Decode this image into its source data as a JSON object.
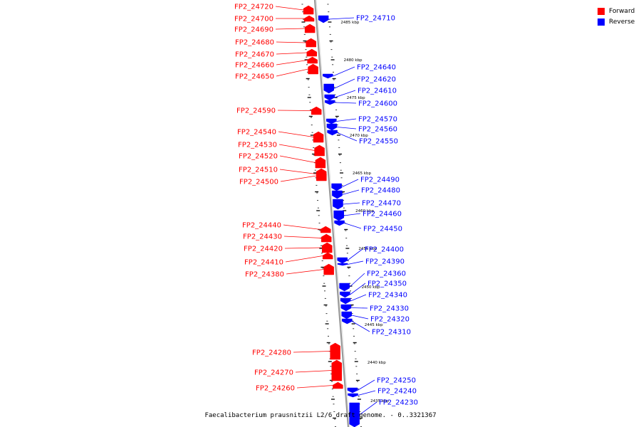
{
  "legend": [
    {
      "label": "Forward",
      "color": "#ff0000"
    },
    {
      "label": "Reverse",
      "color": "#0000ff"
    }
  ],
  "colors": {
    "forward": "#ff0000",
    "reverse": "#0000ff",
    "backbone": "#999999"
  },
  "caption": "Faecalibacterium prausnitzii L2/6 draft genome. - 0..3321367",
  "scale_ticks": [
    "2485 kbp",
    "2480 kbp",
    "2475 kbp",
    "2470 kbp",
    "2465 kbp",
    "2460 kbp",
    "2455 kbp",
    "2450 kbp",
    "2445 kbp",
    "2440 kbp",
    "2435 kbp"
  ],
  "genes": [
    {
      "name": "FP2_24720",
      "strand": "forward"
    },
    {
      "name": "FP2_24710",
      "strand": "reverse"
    },
    {
      "name": "FP2_24700",
      "strand": "forward"
    },
    {
      "name": "FP2_24690",
      "strand": "forward"
    },
    {
      "name": "FP2_24680",
      "strand": "forward"
    },
    {
      "name": "FP2_24670",
      "strand": "forward"
    },
    {
      "name": "FP2_24660",
      "strand": "forward"
    },
    {
      "name": "FP2_24650",
      "strand": "forward"
    },
    {
      "name": "FP2_24640",
      "strand": "reverse"
    },
    {
      "name": "FP2_24620",
      "strand": "reverse"
    },
    {
      "name": "FP2_24610",
      "strand": "reverse"
    },
    {
      "name": "FP2_24600",
      "strand": "reverse"
    },
    {
      "name": "FP2_24590",
      "strand": "forward"
    },
    {
      "name": "FP2_24570",
      "strand": "reverse"
    },
    {
      "name": "FP2_24560",
      "strand": "reverse"
    },
    {
      "name": "FP2_24550",
      "strand": "reverse"
    },
    {
      "name": "FP2_24540",
      "strand": "forward"
    },
    {
      "name": "FP2_24530",
      "strand": "forward"
    },
    {
      "name": "FP2_24520",
      "strand": "forward"
    },
    {
      "name": "FP2_24510",
      "strand": "forward"
    },
    {
      "name": "FP2_24500",
      "strand": "forward"
    },
    {
      "name": "FP2_24490",
      "strand": "reverse"
    },
    {
      "name": "FP2_24480",
      "strand": "reverse"
    },
    {
      "name": "FP2_24470",
      "strand": "reverse"
    },
    {
      "name": "FP2_24460",
      "strand": "reverse"
    },
    {
      "name": "FP2_24450",
      "strand": "reverse"
    },
    {
      "name": "FP2_24440",
      "strand": "forward"
    },
    {
      "name": "FP2_24430",
      "strand": "forward"
    },
    {
      "name": "FP2_24420",
      "strand": "forward"
    },
    {
      "name": "FP2_24410",
      "strand": "forward"
    },
    {
      "name": "FP2_24380",
      "strand": "forward"
    },
    {
      "name": "FP2_24400",
      "strand": "reverse"
    },
    {
      "name": "FP2_24390",
      "strand": "reverse"
    },
    {
      "name": "FP2_24360",
      "strand": "reverse"
    },
    {
      "name": "FP2_24350",
      "strand": "reverse"
    },
    {
      "name": "FP2_24340",
      "strand": "reverse"
    },
    {
      "name": "FP2_24330",
      "strand": "reverse"
    },
    {
      "name": "FP2_24320",
      "strand": "reverse"
    },
    {
      "name": "FP2_24310",
      "strand": "reverse"
    },
    {
      "name": "FP2_24280",
      "strand": "forward"
    },
    {
      "name": "FP2_24270",
      "strand": "forward"
    },
    {
      "name": "FP2_24260",
      "strand": "forward"
    },
    {
      "name": "FP2_24250",
      "strand": "reverse"
    },
    {
      "name": "FP2_24240",
      "strand": "reverse"
    },
    {
      "name": "FP2_24230",
      "strand": "reverse"
    }
  ]
}
